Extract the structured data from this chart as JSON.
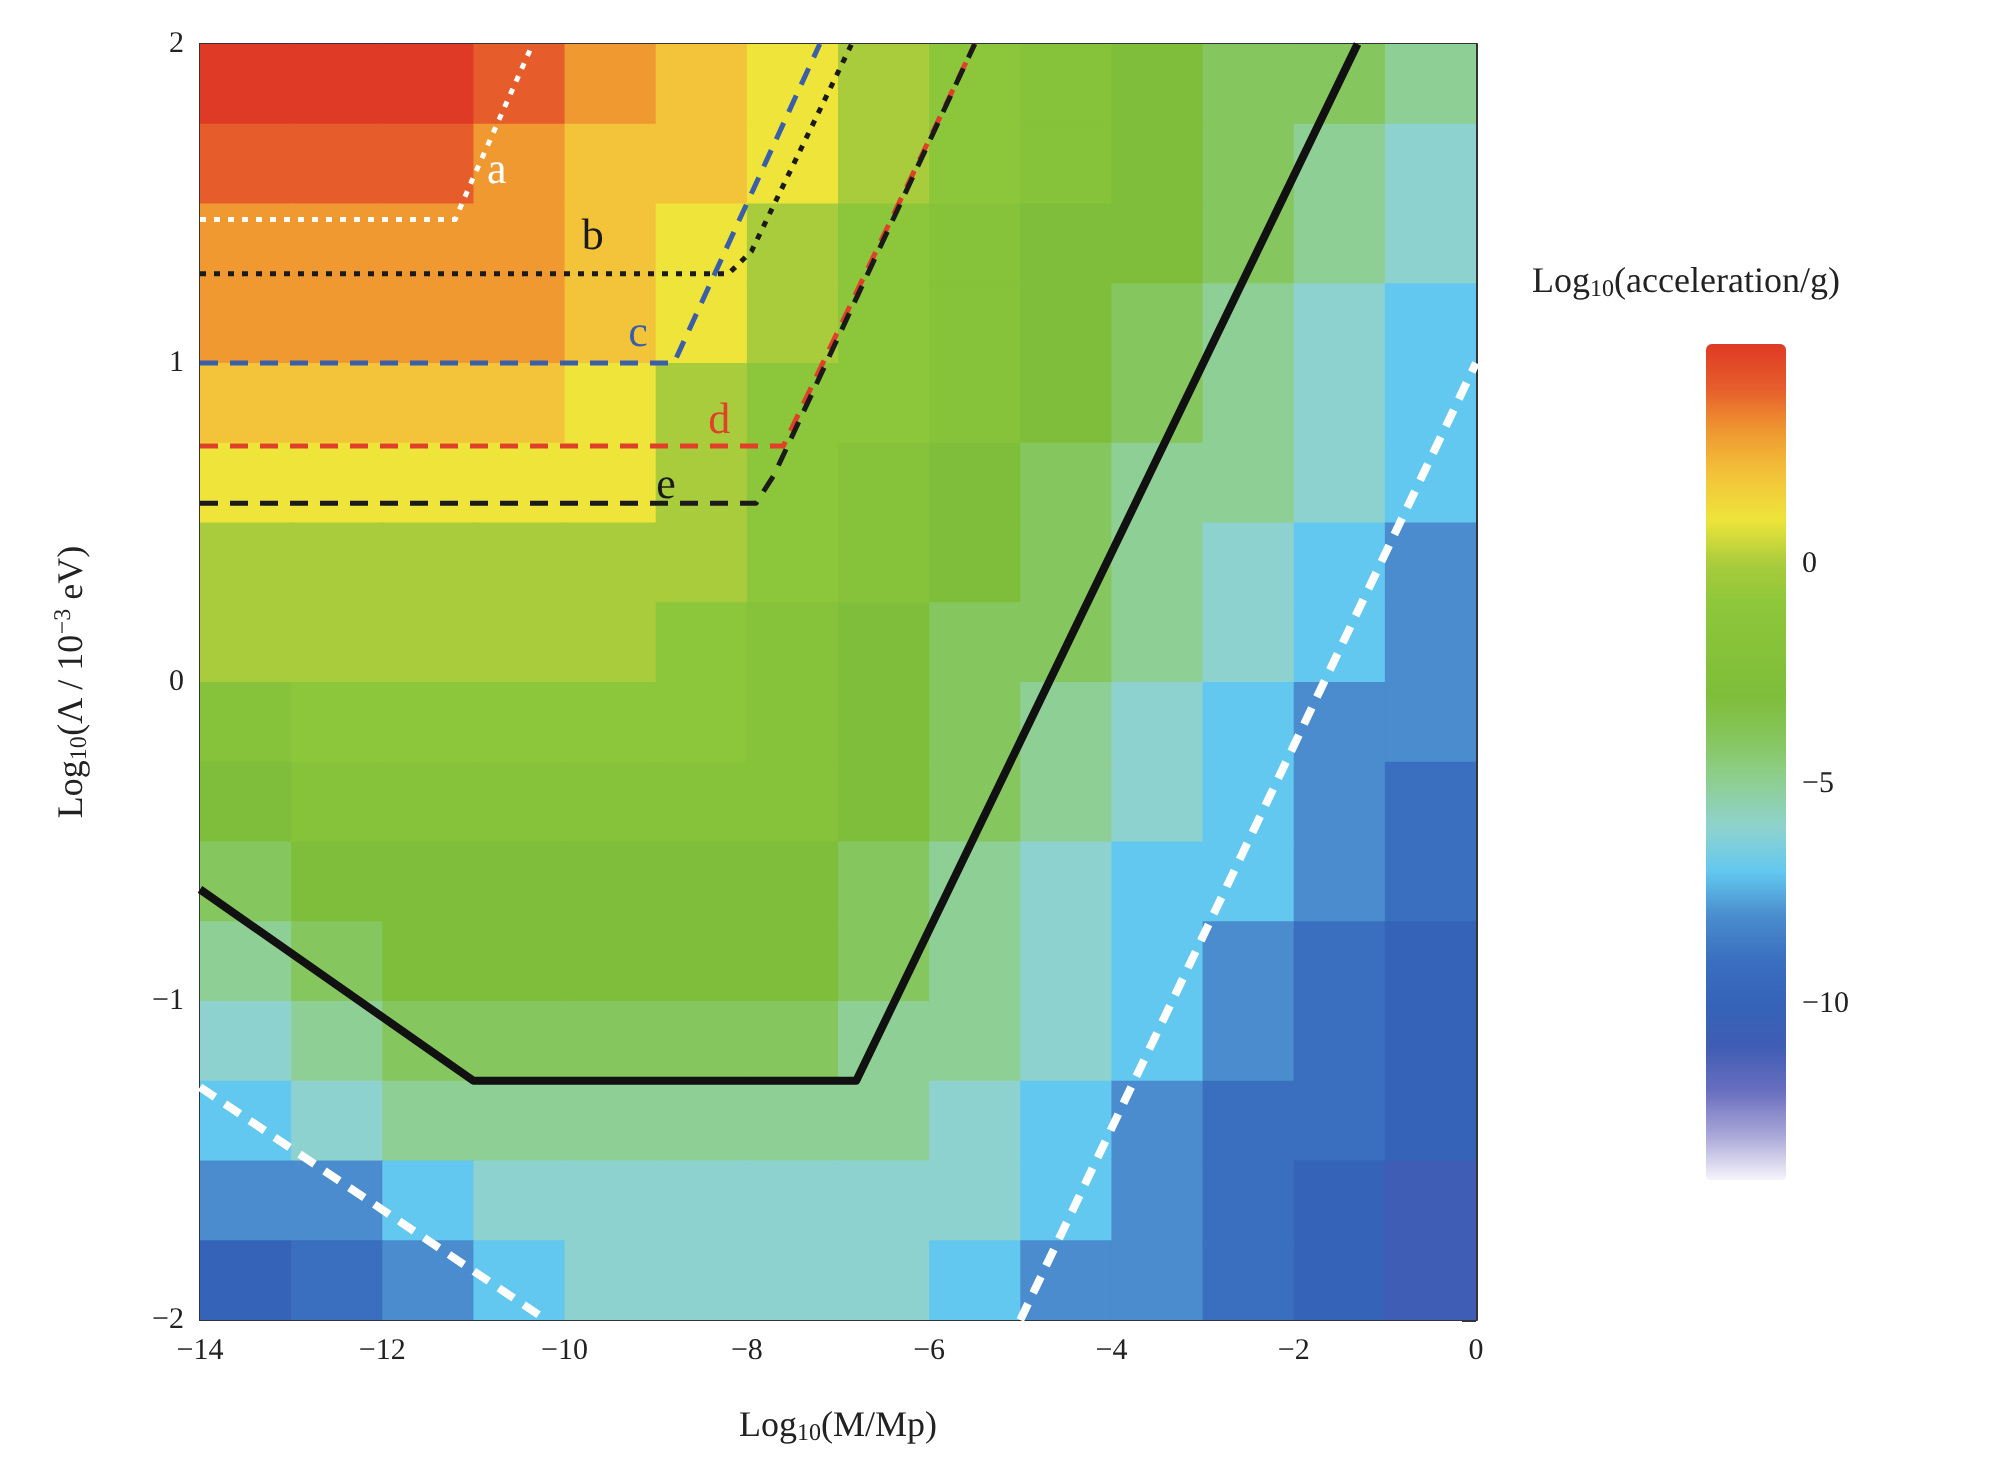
{
  "chart_data": {
    "type": "heatmap",
    "xlabel": "Log$_{10}$(M/Mp)",
    "ylabel": "Log$_{10}$(Λ / 10$^{−3}$ eV)",
    "clabel": "Log$_{10}$(acceleration/g)",
    "x": [
      -13.5,
      -12.5,
      -11.5,
      -10.5,
      -9.5,
      -8.5,
      -7.5,
      -6.5,
      -5.5,
      -4.5,
      -3.5,
      -2.5,
      -1.5,
      -0.5
    ],
    "y": [
      1.875,
      1.625,
      1.375,
      1.125,
      0.875,
      0.625,
      0.375,
      0.125,
      -0.125,
      -0.375,
      -0.625,
      -0.875,
      -1.125,
      -1.375,
      -1.625,
      -1.875
    ],
    "cells": [
      [
        5,
        5,
        5,
        4,
        3,
        2,
        1,
        0,
        -1,
        -2,
        -3,
        -4,
        -4,
        -5
      ],
      [
        4,
        4,
        4,
        3,
        2,
        2,
        1,
        0,
        -1,
        -2,
        -3,
        -4,
        -5,
        -6
      ],
      [
        3,
        3,
        3,
        3,
        2,
        1,
        0,
        -1,
        -2,
        -3,
        -3,
        -4,
        -5,
        -6
      ],
      [
        3,
        3,
        3,
        3,
        2,
        1,
        0,
        -1,
        -2,
        -3,
        -4,
        -5,
        -6,
        -7
      ],
      [
        2,
        2,
        2,
        2,
        1,
        0,
        -1,
        -1,
        -2,
        -3,
        -4,
        -5,
        -6,
        -7
      ],
      [
        1,
        1,
        1,
        1,
        1,
        0,
        -1,
        -2,
        -3,
        -4,
        -5,
        -5,
        -6,
        -7
      ],
      [
        0,
        0,
        0,
        0,
        0,
        0,
        -1,
        -2,
        -3,
        -4,
        -5,
        -6,
        -7,
        -8
      ],
      [
        0,
        0,
        0,
        0,
        0,
        -1,
        -2,
        -3,
        -4,
        -4,
        -5,
        -6,
        -7,
        -8
      ],
      [
        -2,
        -1,
        -1,
        -1,
        -1,
        -1,
        -2,
        -3,
        -4,
        -5,
        -6,
        -7,
        -8,
        -8
      ],
      [
        -3,
        -2,
        -2,
        -2,
        -2,
        -2,
        -2,
        -3,
        -4,
        -5,
        -6,
        -7,
        -8,
        -9
      ],
      [
        -4,
        -3,
        -3,
        -3,
        -3,
        -3,
        -3,
        -4,
        -5,
        -6,
        -7,
        -7,
        -8,
        -9
      ],
      [
        -5,
        -4,
        -3,
        -3,
        -3,
        -3,
        -3,
        -4,
        -5,
        -6,
        -7,
        -8,
        -9,
        -10
      ],
      [
        -6,
        -5,
        -4,
        -4,
        -4,
        -4,
        -4,
        -5,
        -5,
        -6,
        -7,
        -8,
        -9,
        -10
      ],
      [
        -7,
        -6,
        -5,
        -5,
        -5,
        -5,
        -5,
        -5,
        -6,
        -7,
        -8,
        -9,
        -9,
        -10
      ],
      [
        -8,
        -8,
        -7,
        -6,
        -6,
        -6,
        -6,
        -6,
        -6,
        -7,
        -8,
        -9,
        -10,
        -11
      ],
      [
        -10,
        -9,
        -8,
        -7,
        -6,
        -6,
        -6,
        -6,
        -7,
        -8,
        -8,
        -9,
        -10,
        -11
      ]
    ],
    "clim": [
      -14,
      5
    ],
    "cticks": [
      -10,
      -5,
      0
    ],
    "xlim": [
      -14,
      0
    ],
    "xticks": [
      -14,
      -12,
      -10,
      -8,
      -6,
      -4,
      -2,
      0
    ],
    "ylim": [
      -2,
      2
    ],
    "yticks": [
      -2,
      -1,
      0,
      1,
      2
    ],
    "series": [
      {
        "name": "a",
        "type": "line",
        "color": "#ffffff",
        "line_style": "dotted",
        "x": [
          -14,
          -11.2,
          -11.05,
          -10.35
        ],
        "values": [
          1.45,
          1.45,
          1.55,
          2
        ]
      },
      {
        "name": "b",
        "type": "line",
        "color": "#1a1a1a",
        "line_style": "dotted",
        "x": [
          -14,
          -8.2,
          -7.95,
          -6.85
        ],
        "values": [
          1.28,
          1.28,
          1.35,
          2
        ]
      },
      {
        "name": "c",
        "type": "line",
        "color": "#3a5fa8",
        "line_style": "dashed",
        "x": [
          -14,
          -8.8,
          -7.2
        ],
        "values": [
          1,
          1,
          2
        ]
      },
      {
        "name": "d",
        "type": "line",
        "color": "#e0402a",
        "line_style": "dashed",
        "x": [
          -14,
          -7.6,
          -5.5
        ],
        "values": [
          0.74,
          0.74,
          2
        ]
      },
      {
        "name": "e",
        "type": "line",
        "color": "#1a1a1a",
        "line_style": "dashed",
        "x": [
          -14,
          -7.9,
          -7.7,
          -5.5
        ],
        "values": [
          0.56,
          0.56,
          0.65,
          2
        ]
      },
      {
        "type": "line",
        "color": "#111111",
        "line_style": "solid",
        "x": [
          -14,
          -11,
          -6.8,
          -1.3
        ],
        "values": [
          -0.65,
          -1.25,
          -1.25,
          2
        ]
      },
      {
        "type": "line",
        "color": "#ffffff",
        "line_style": "dashed",
        "x": [
          -14,
          -10.2
        ],
        "values": [
          -1.27,
          -2
        ]
      },
      {
        "type": "line",
        "color": "#ffffff",
        "line_style": "dashed",
        "x": [
          -5,
          0
        ],
        "values": [
          -2,
          1
        ]
      }
    ]
  }
}
